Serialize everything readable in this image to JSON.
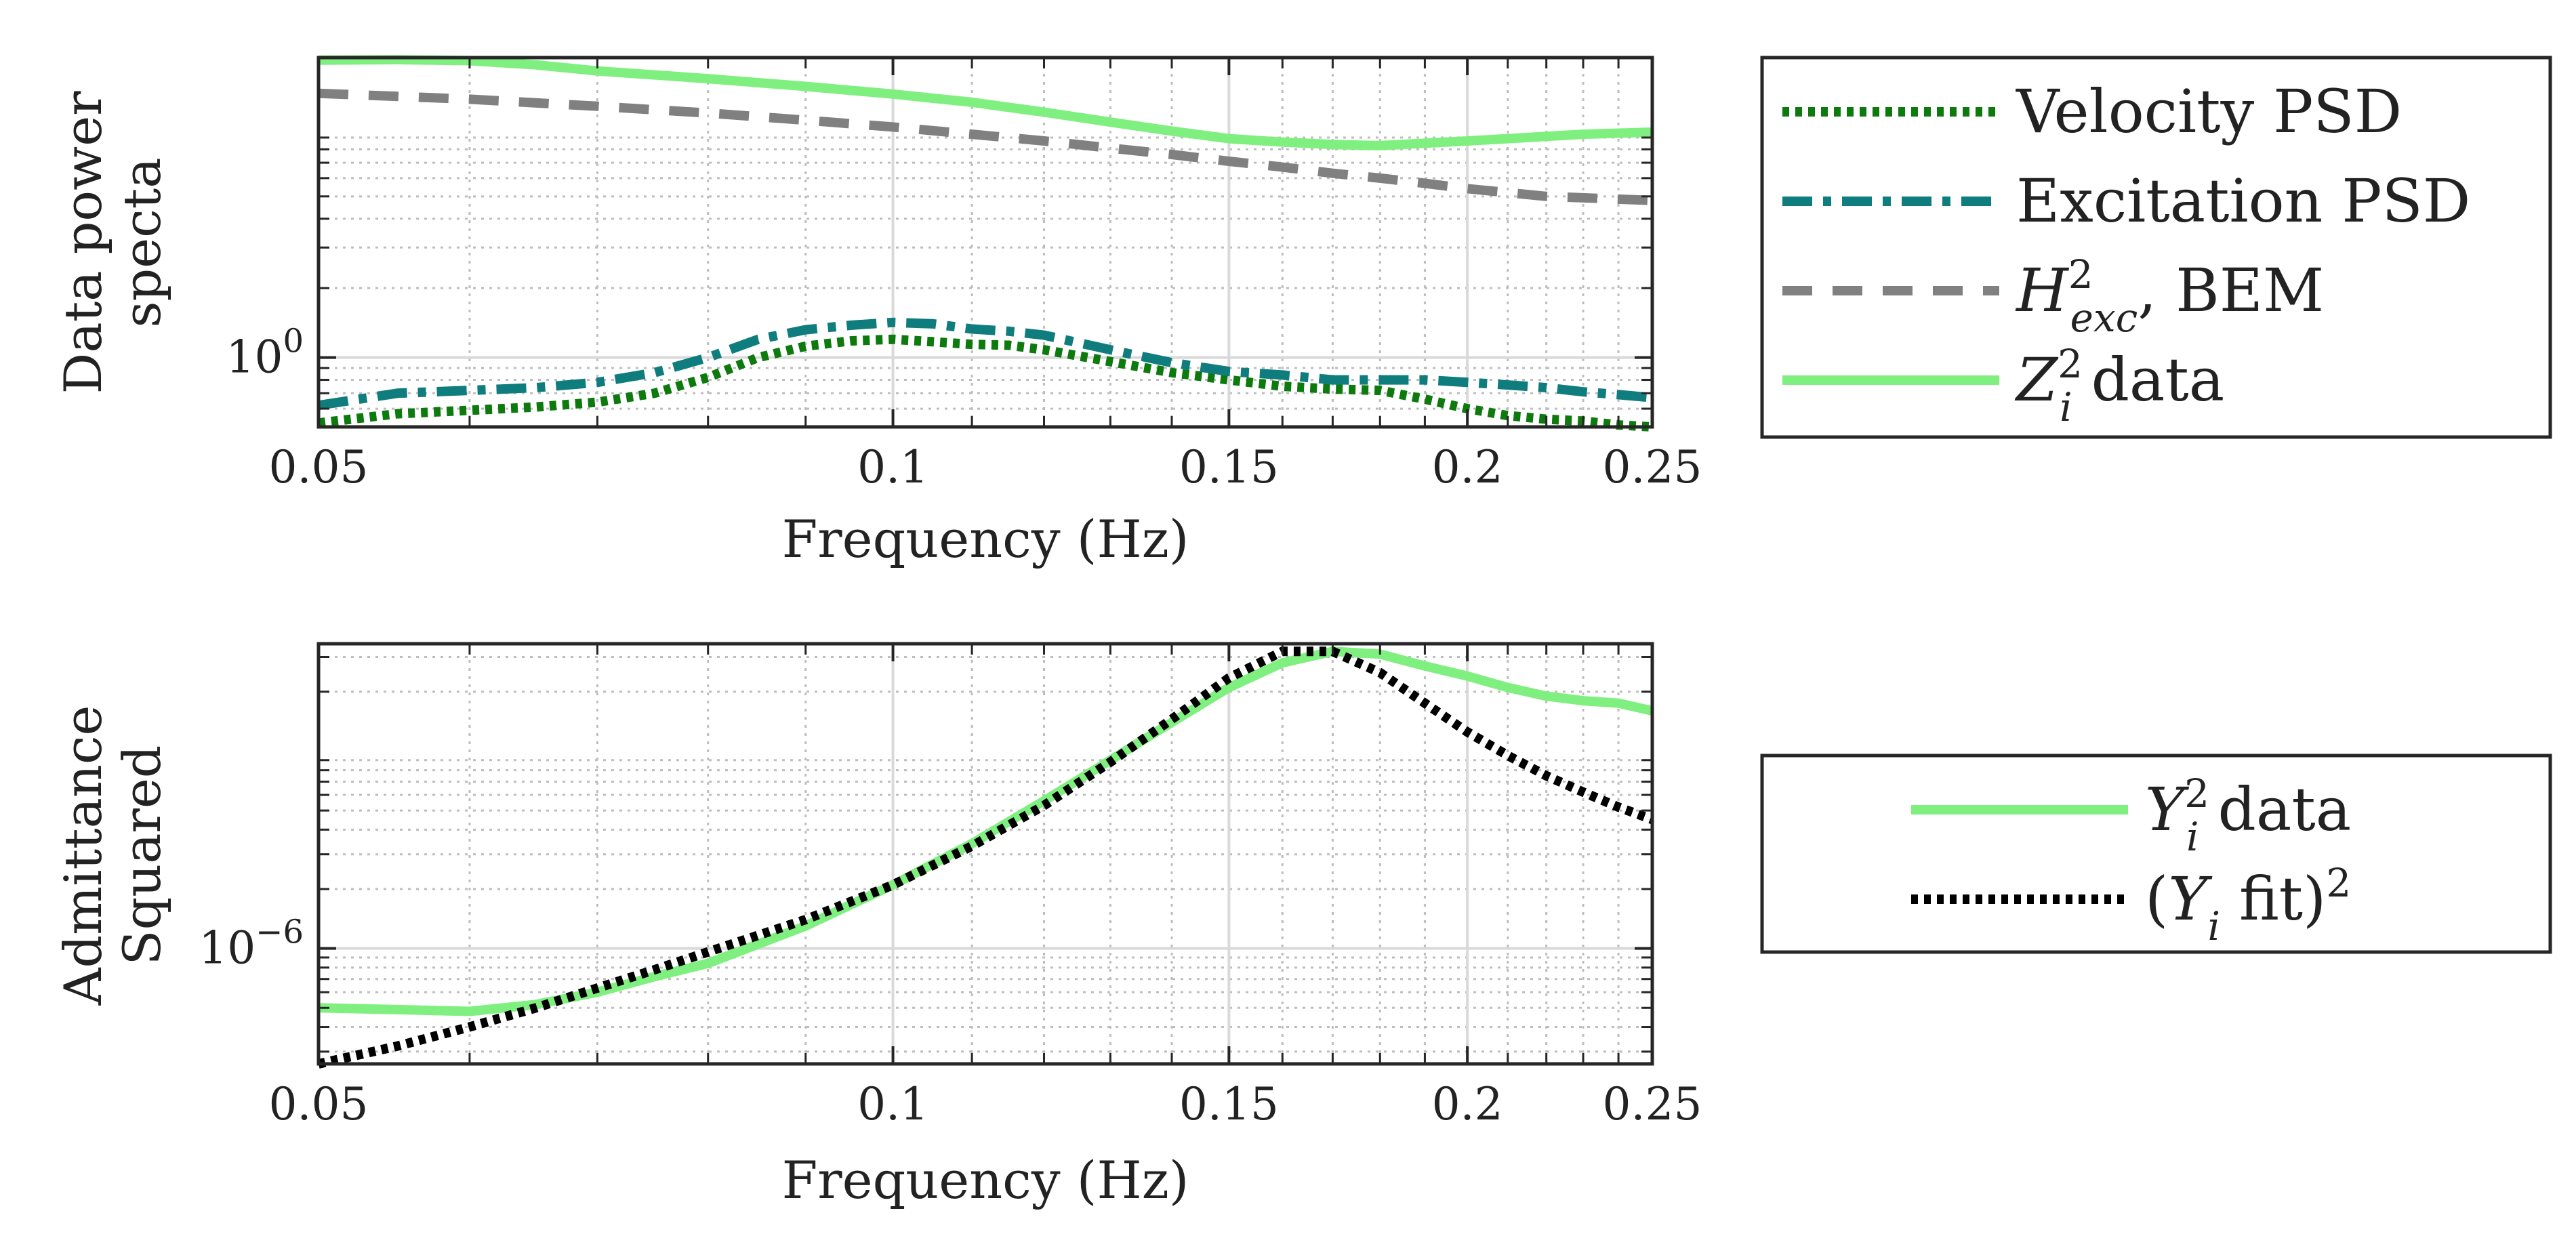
{
  "chart_data": [
    {
      "type": "line",
      "xscale": "log",
      "yscale": "log",
      "xlabel": "Frequency (Hz)",
      "ylabel_lines": [
        "Data power",
        "specta"
      ],
      "xlim": [
        0.05,
        0.25
      ],
      "ylim": [
        0.5,
        20
      ],
      "x_ticks": [
        0.05,
        0.1,
        0.15,
        0.2,
        0.25
      ],
      "x_tick_labels": [
        "0.05",
        "0.1",
        "0.15",
        "0.2",
        "0.25"
      ],
      "y_ticks": [
        {
          "value": 1,
          "base": "10",
          "exp": "0"
        }
      ],
      "grid": true,
      "legend_placement": "outside-right-top",
      "series": [
        {
          "name": "Velocity PSD",
          "color": "#0d7a0d",
          "style": "dotted",
          "x": [
            0.05,
            0.055,
            0.06,
            0.065,
            0.07,
            0.075,
            0.08,
            0.085,
            0.09,
            0.095,
            0.1,
            0.105,
            0.11,
            0.115,
            0.12,
            0.13,
            0.14,
            0.15,
            0.16,
            0.17,
            0.18,
            0.19,
            0.2,
            0.21,
            0.22,
            0.23,
            0.24,
            0.25
          ],
          "values": [
            0.52,
            0.57,
            0.59,
            0.61,
            0.64,
            0.7,
            0.82,
            1.0,
            1.12,
            1.18,
            1.2,
            1.17,
            1.14,
            1.13,
            1.08,
            0.96,
            0.86,
            0.8,
            0.75,
            0.73,
            0.72,
            0.66,
            0.6,
            0.56,
            0.54,
            0.53,
            0.51,
            0.5
          ]
        },
        {
          "name": "Excitation PSD",
          "color": "#0f7d7d",
          "style": "dash-dot",
          "x": [
            0.05,
            0.055,
            0.06,
            0.065,
            0.07,
            0.075,
            0.08,
            0.085,
            0.09,
            0.095,
            0.1,
            0.105,
            0.11,
            0.115,
            0.12,
            0.13,
            0.14,
            0.15,
            0.16,
            0.17,
            0.18,
            0.19,
            0.2,
            0.21,
            0.22,
            0.23,
            0.24,
            0.25
          ],
          "values": [
            0.62,
            0.7,
            0.72,
            0.74,
            0.78,
            0.86,
            1.0,
            1.2,
            1.32,
            1.38,
            1.42,
            1.4,
            1.33,
            1.3,
            1.25,
            1.08,
            0.95,
            0.87,
            0.84,
            0.8,
            0.8,
            0.8,
            0.78,
            0.76,
            0.74,
            0.71,
            0.69,
            0.67
          ]
        },
        {
          "name": "H_exc^2, BEM",
          "color": "#808080",
          "style": "dashed",
          "x": [
            0.05,
            0.06,
            0.07,
            0.08,
            0.09,
            0.1,
            0.11,
            0.12,
            0.13,
            0.14,
            0.15,
            0.16,
            0.17,
            0.18,
            0.19,
            0.2,
            0.22,
            0.25
          ],
          "values": [
            14.0,
            13.2,
            12.3,
            11.5,
            10.7,
            10.0,
            9.3,
            8.7,
            8.1,
            7.6,
            7.1,
            6.7,
            6.3,
            6.0,
            5.7,
            5.4,
            5.0,
            4.8
          ]
        },
        {
          "name": "Z_i^2 data",
          "color": "#7ff07f",
          "style": "solid",
          "x": [
            0.05,
            0.055,
            0.06,
            0.065,
            0.07,
            0.08,
            0.09,
            0.1,
            0.11,
            0.12,
            0.13,
            0.14,
            0.15,
            0.16,
            0.17,
            0.18,
            0.19,
            0.2,
            0.21,
            0.22,
            0.23,
            0.24,
            0.25
          ],
          "values": [
            19.5,
            19.6,
            19.4,
            18.6,
            17.5,
            16.2,
            15.0,
            13.9,
            12.8,
            11.6,
            10.5,
            9.6,
            8.9,
            8.6,
            8.4,
            8.3,
            8.5,
            8.7,
            8.9,
            9.1,
            9.3,
            9.4,
            9.5
          ]
        }
      ]
    },
    {
      "type": "line",
      "xscale": "log",
      "yscale": "log",
      "xlabel": "Frequency (Hz)",
      "ylabel_lines": [
        "Admittance",
        "Squared"
      ],
      "xlim": [
        0.05,
        0.25
      ],
      "ylim": [
        2.6e-07,
        3.5e-05
      ],
      "x_ticks": [
        0.05,
        0.1,
        0.15,
        0.2,
        0.25
      ],
      "x_tick_labels": [
        "0.05",
        "0.1",
        "0.15",
        "0.2",
        "0.25"
      ],
      "y_ticks": [
        {
          "value": 1e-06,
          "base": "10",
          "exp": "−6"
        }
      ],
      "grid": true,
      "legend_placement": "outside-right",
      "series": [
        {
          "name": "Y_i^2 data",
          "color": "#7ff07f",
          "style": "solid",
          "x": [
            0.05,
            0.055,
            0.06,
            0.065,
            0.07,
            0.075,
            0.08,
            0.09,
            0.1,
            0.11,
            0.12,
            0.13,
            0.14,
            0.15,
            0.16,
            0.17,
            0.18,
            0.19,
            0.2,
            0.21,
            0.22,
            0.23,
            0.24,
            0.25
          ],
          "values": [
            5e-07,
            4.9e-07,
            4.8e-07,
            5.2e-07,
            6e-07,
            7.2e-07,
            8.4e-07,
            1.3e-06,
            2.1e-06,
            3.4e-06,
            5.6e-06,
            9e-06,
            1.4e-05,
            2.1e-05,
            2.8e-05,
            3.2e-05,
            3.1e-05,
            2.7e-05,
            2.4e-05,
            2.1e-05,
            1.9e-05,
            1.8e-05,
            1.75e-05,
            1.6e-05
          ]
        },
        {
          "name": "(Y_i fit)^2",
          "color": "#000000",
          "style": "dotted",
          "x": [
            0.05,
            0.055,
            0.06,
            0.065,
            0.07,
            0.075,
            0.08,
            0.09,
            0.1,
            0.11,
            0.12,
            0.13,
            0.14,
            0.15,
            0.16,
            0.17,
            0.18,
            0.19,
            0.2,
            0.21,
            0.22,
            0.23,
            0.24,
            0.25
          ],
          "values": [
            2.6e-07,
            3.2e-07,
            4e-07,
            5e-07,
            6.3e-07,
            7.8e-07,
            9.6e-07,
            1.4e-06,
            2.1e-06,
            3.3e-06,
            5.3e-06,
            8.8e-06,
            1.45e-05,
            2.35e-05,
            3.2e-05,
            3.2e-05,
            2.5e-05,
            1.75e-05,
            1.25e-05,
            9.5e-06,
            7.5e-06,
            6.2e-06,
            5.2e-06,
            4.5e-06
          ]
        }
      ]
    }
  ],
  "legend_top": {
    "entries": [
      {
        "text": "Velocity PSD",
        "color": "#0d7a0d",
        "style": "dotted"
      },
      {
        "text": "Excitation PSD",
        "color": "#0f7d7d",
        "style": "dash-dot"
      },
      {
        "base": "H",
        "sup": "2",
        "sub": "exc",
        "after": ", BEM",
        "color": "#808080",
        "style": "dashed"
      },
      {
        "base": "Z",
        "sup": "2",
        "sub": "i",
        "after": " data",
        "color": "#7ff07f",
        "style": "solid"
      }
    ]
  },
  "legend_bottom": {
    "entries": [
      {
        "base": "Y",
        "sup": "2",
        "sub": "i",
        "after": " data",
        "color": "#7ff07f",
        "style": "solid"
      },
      {
        "pre": "(",
        "base": "Y",
        "sub": "i",
        "after": " fit)",
        "tail_sup": "2",
        "color": "#000000",
        "style": "dotted"
      }
    ]
  }
}
